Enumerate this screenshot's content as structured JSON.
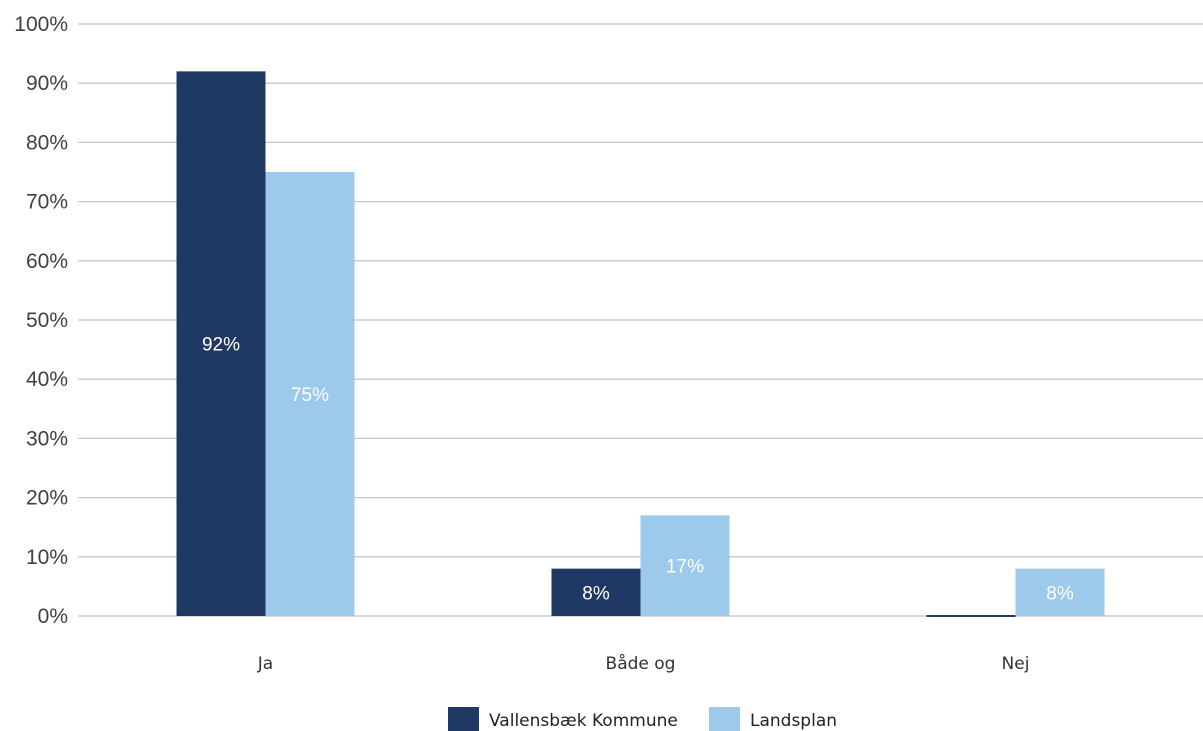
{
  "chart_data": {
    "type": "bar",
    "categories": [
      "Ja",
      "Både og",
      "Nej"
    ],
    "series": [
      {
        "name": "Vallensbæk Kommune",
        "color": "#203864",
        "values": [
          92,
          8,
          0
        ],
        "labels": [
          "92%",
          "8%",
          ""
        ]
      },
      {
        "name": "Landsplan",
        "color": "#9DC9EA",
        "values": [
          75,
          17,
          8
        ],
        "labels": [
          "75%",
          "17%",
          "8%"
        ]
      }
    ],
    "yticks": [
      "0%",
      "10%",
      "20%",
      "30%",
      "40%",
      "50%",
      "60%",
      "70%",
      "80%",
      "90%",
      "100%"
    ],
    "ylim": [
      0,
      100
    ],
    "grid": true,
    "legend": "bottom-center",
    "title": "",
    "xlabel": "",
    "ylabel": ""
  }
}
